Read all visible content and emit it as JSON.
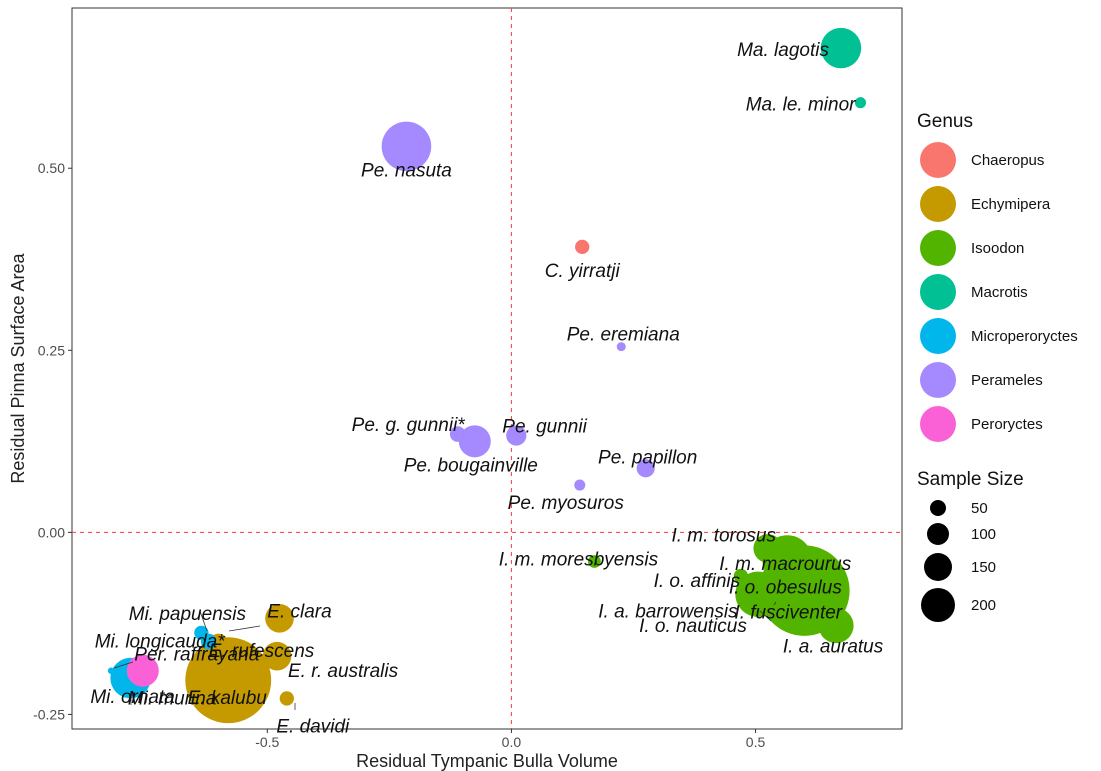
{
  "chart_data": {
    "type": "scatter",
    "xlabel": "Residual Tympanic Bulla Volume",
    "ylabel": "Residual Pinna Surface Area",
    "xlim": [
      -0.9,
      0.8
    ],
    "ylim": [
      -0.27,
      0.72
    ],
    "x_ticks": [
      -0.5,
      0.0,
      0.5
    ],
    "x_tick_labels": [
      "-0.5",
      "0.0",
      "0.5"
    ],
    "y_ticks": [
      -0.25,
      0.0,
      0.25,
      0.5
    ],
    "y_tick_labels": [
      "-0.25",
      "0.00",
      "0.25",
      "0.50"
    ],
    "reference_lines": {
      "x": 0,
      "y": 0
    },
    "grid": false,
    "legend_placement": "right",
    "color_legend": {
      "title": "Genus",
      "entries": [
        {
          "name": "Chaeropus",
          "color": "#F8766D"
        },
        {
          "name": "Echymipera",
          "color": "#C49A00"
        },
        {
          "name": "Isoodon",
          "color": "#53B400"
        },
        {
          "name": "Macrotis",
          "color": "#00C094"
        },
        {
          "name": "Microperoryctes",
          "color": "#00B6EB"
        },
        {
          "name": "Perameles",
          "color": "#A58AFF"
        },
        {
          "name": "Peroryctes",
          "color": "#FB61D7"
        }
      ]
    },
    "size_legend": {
      "title": "Sample Size",
      "entries": [
        {
          "label": "50",
          "value": 50
        },
        {
          "label": "100",
          "value": 100
        },
        {
          "label": "150",
          "value": 150
        },
        {
          "label": "200",
          "value": 200
        }
      ]
    },
    "points": [
      {
        "label": "Ma. lagotis",
        "genus": "Macrotis",
        "x": 0.675,
        "y": 0.665,
        "n": 40
      },
      {
        "label": "Ma. le. minor",
        "genus": "Macrotis",
        "x": 0.715,
        "y": 0.59,
        "n": 3
      },
      {
        "label": "Pe. nasuta",
        "genus": "Perameles",
        "x": -0.215,
        "y": 0.53,
        "n": 60
      },
      {
        "label": "C. yirratji",
        "genus": "Chaeropus",
        "x": 0.145,
        "y": 0.392,
        "n": 5
      },
      {
        "label": "Pe. eremiana",
        "genus": "Perameles",
        "x": 0.225,
        "y": 0.255,
        "n": 2
      },
      {
        "label": "Pe. g. gunnii*",
        "genus": "Perameles",
        "x": -0.11,
        "y": 0.135,
        "n": 6
      },
      {
        "label": "Pe. gunnii",
        "genus": "Perameles",
        "x": 0.01,
        "y": 0.133,
        "n": 10
      },
      {
        "label": "Pe. bougainville",
        "genus": "Perameles",
        "x": -0.075,
        "y": 0.125,
        "n": 25
      },
      {
        "label": "Pe. papillon",
        "genus": "Perameles",
        "x": 0.275,
        "y": 0.088,
        "n": 8
      },
      {
        "label": "Pe. myosuros",
        "genus": "Perameles",
        "x": 0.14,
        "y": 0.065,
        "n": 3
      },
      {
        "label": "I. m. torosus",
        "genus": "Isoodon",
        "x": 0.525,
        "y": -0.022,
        "n": 20
      },
      {
        "label": "I. m. macrourus",
        "genus": "Isoodon",
        "x": 0.565,
        "y": -0.038,
        "n": 60
      },
      {
        "label": "I. m. moresbyensis",
        "genus": "Isoodon",
        "x": 0.17,
        "y": -0.04,
        "n": 4
      },
      {
        "label": "I. o. affinis",
        "genus": "Isoodon",
        "x": 0.47,
        "y": -0.06,
        "n": 5
      },
      {
        "label": "I. o. obesulus",
        "genus": "Isoodon",
        "x": 0.6,
        "y": -0.08,
        "n": 200
      },
      {
        "label": "I. a. barrowensis",
        "genus": "Isoodon",
        "x": 0.505,
        "y": -0.085,
        "n": 50
      },
      {
        "label": "I. fusciventer",
        "genus": "Isoodon",
        "x": 0.52,
        "y": -0.103,
        "n": 8
      },
      {
        "label": "I. o. nauticus",
        "genus": "Isoodon",
        "x": 0.505,
        "y": -0.09,
        "n": 6
      },
      {
        "label": "I. a. auratus",
        "genus": "Isoodon",
        "x": 0.665,
        "y": -0.128,
        "n": 30
      },
      {
        "label": "Mi. papuensis",
        "genus": "Microperoryctes",
        "x": -0.635,
        "y": -0.138,
        "n": 5
      },
      {
        "label": "E. clara",
        "genus": "Echymipera",
        "x": -0.475,
        "y": -0.118,
        "n": 20
      },
      {
        "label": "Mi. longicauda*",
        "genus": "Microperoryctes",
        "x": -0.62,
        "y": -0.15,
        "n": 6
      },
      {
        "label": "E. rufescens",
        "genus": "Echymipera",
        "x": -0.6,
        "y": -0.153,
        "n": 10
      },
      {
        "label": "Per. raffrayana",
        "genus": "Peroryctes",
        "x": -0.755,
        "y": -0.19,
        "n": 25
      },
      {
        "label": "E. r. australis",
        "genus": "Echymipera",
        "x": -0.48,
        "y": -0.17,
        "n": 20
      },
      {
        "label": "Mi. ornata",
        "genus": "Microperoryctes",
        "x": -0.78,
        "y": -0.2,
        "n": 40
      },
      {
        "label": "E. kalubu",
        "genus": "Echymipera",
        "x": -0.58,
        "y": -0.203,
        "n": 180
      },
      {
        "label": "Mi. murina",
        "genus": "Microperoryctes",
        "x": -0.82,
        "y": -0.19,
        "n": 1
      },
      {
        "label": "E. davidi",
        "genus": "Echymipera",
        "x": -0.46,
        "y": -0.228,
        "n": 5
      }
    ]
  }
}
